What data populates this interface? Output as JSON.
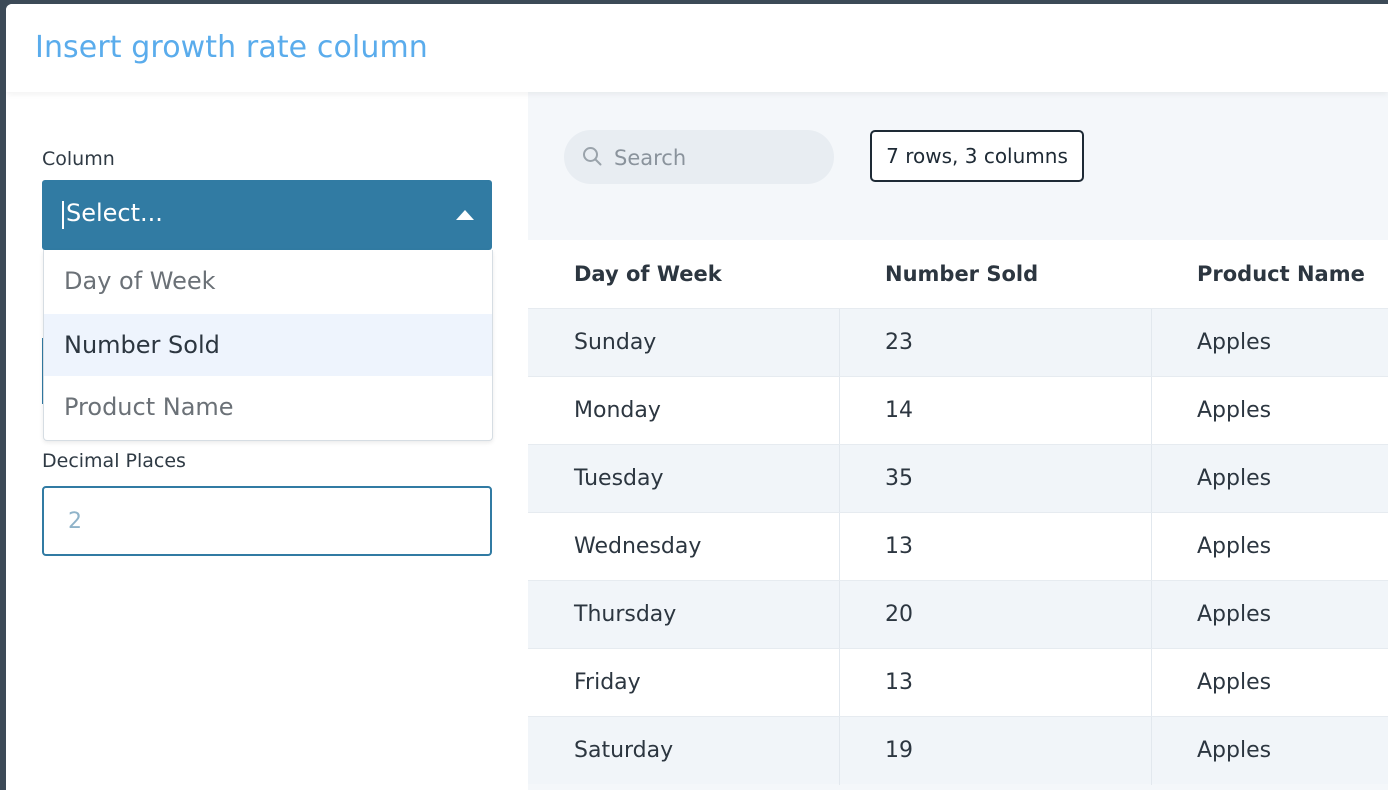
{
  "modal": {
    "title": "Insert growth rate column"
  },
  "form": {
    "column_label": "Column",
    "select_placeholder": "Select...",
    "options": [
      "Day of Week",
      "Number Sold",
      "Product Name"
    ],
    "highlighted_option": "Number Sold",
    "decimal_label": "Decimal Places",
    "decimal_placeholder": "2"
  },
  "toolbar": {
    "search_placeholder": "Search",
    "rows_badge": "7 rows, 3 columns"
  },
  "table": {
    "headers": [
      "Day of Week",
      "Number Sold",
      "Product Name"
    ],
    "rows": [
      [
        "Sunday",
        "23",
        "Apples"
      ],
      [
        "Monday",
        "14",
        "Apples"
      ],
      [
        "Tuesday",
        "35",
        "Apples"
      ],
      [
        "Wednesday",
        "13",
        "Apples"
      ],
      [
        "Thursday",
        "20",
        "Apples"
      ],
      [
        "Friday",
        "13",
        "Apples"
      ],
      [
        "Saturday",
        "19",
        "Apples"
      ]
    ]
  },
  "colors": {
    "title": "#5aacec",
    "select_bg": "#317ba3",
    "highlight": "#eef4fd"
  }
}
